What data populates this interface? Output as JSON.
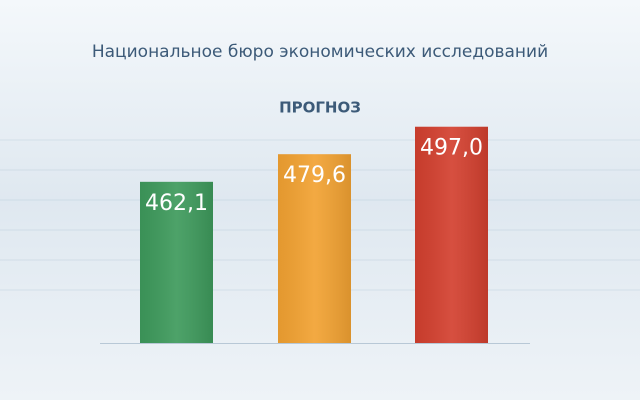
{
  "chart_data": {
    "type": "bar",
    "title": "Национальное бюро экономических исследований",
    "subtitle": "ПРОГНОЗ",
    "categories": [
      null,
      null,
      null
    ],
    "values": [
      462.1,
      479.6,
      497.0
    ],
    "value_labels": [
      "462,1",
      "479,6",
      "497,0"
    ],
    "colors": [
      "#3e9a5c",
      "#f2a232",
      "#d3402f"
    ],
    "ylim": [
      360,
      500
    ]
  }
}
